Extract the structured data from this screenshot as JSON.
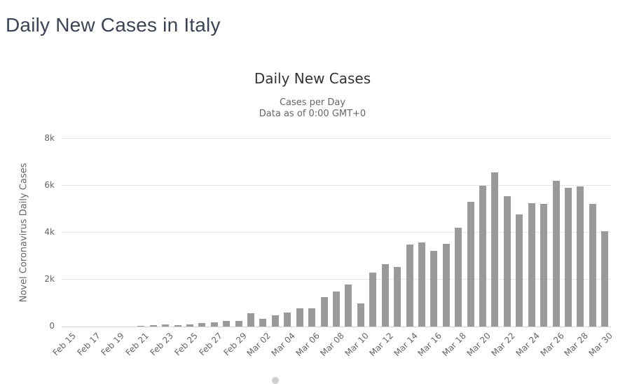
{
  "page": {
    "title": "Daily New Cases in Italy"
  },
  "chart": {
    "title": "Daily New Cases",
    "subtitle_line1": "Cases per Day",
    "subtitle_line2": "Data as of 0:00 GMT+0",
    "y_axis_title": "Novel Coronavirus Daily Cases"
  },
  "colors": {
    "page_title": "#3d4352",
    "chart_title": "#333333",
    "subtitle": "#666666",
    "axis_label": "#666666",
    "bar": "#9a9a9a",
    "gridline": "#e6e6e6",
    "axis_line": "#ccd6eb"
  },
  "chart_data": {
    "type": "bar",
    "title": "Daily New Cases",
    "subtitle": [
      "Cases per Day",
      "Data as of 0:00 GMT+0"
    ],
    "xlabel": "",
    "ylabel": "Novel Coronavirus Daily Cases",
    "ylim": [
      0,
      8000
    ],
    "ytick_labels": [
      "0",
      "2k",
      "4k",
      "6k",
      "8k"
    ],
    "ytick_values": [
      0,
      2000,
      4000,
      6000,
      8000
    ],
    "grid": true,
    "x_label_every": 2,
    "categories": [
      "Feb 15",
      "Feb 16",
      "Feb 17",
      "Feb 18",
      "Feb 19",
      "Feb 20",
      "Feb 21",
      "Feb 22",
      "Feb 23",
      "Feb 24",
      "Feb 25",
      "Feb 26",
      "Feb 27",
      "Feb 28",
      "Feb 29",
      "Mar 01",
      "Mar 02",
      "Mar 03",
      "Mar 04",
      "Mar 05",
      "Mar 06",
      "Mar 07",
      "Mar 08",
      "Mar 09",
      "Mar 10",
      "Mar 11",
      "Mar 12",
      "Mar 13",
      "Mar 14",
      "Mar 15",
      "Mar 16",
      "Mar 17",
      "Mar 18",
      "Mar 19",
      "Mar 20",
      "Mar 21",
      "Mar 22",
      "Mar 23",
      "Mar 24",
      "Mar 25",
      "Mar 26",
      "Mar 27",
      "Mar 28",
      "Mar 29",
      "Mar 30"
    ],
    "values": [
      3,
      0,
      0,
      0,
      0,
      0,
      17,
      59,
      78,
      72,
      94,
      147,
      185,
      234,
      239,
      573,
      335,
      466,
      587,
      769,
      778,
      1247,
      1492,
      1797,
      977,
      2313,
      2651,
      2547,
      3497,
      3590,
      3233,
      3526,
      4207,
      5322,
      5986,
      6557,
      5560,
      4789,
      5249,
      5210,
      6203,
      5909,
      5974,
      5217,
      4050
    ]
  }
}
